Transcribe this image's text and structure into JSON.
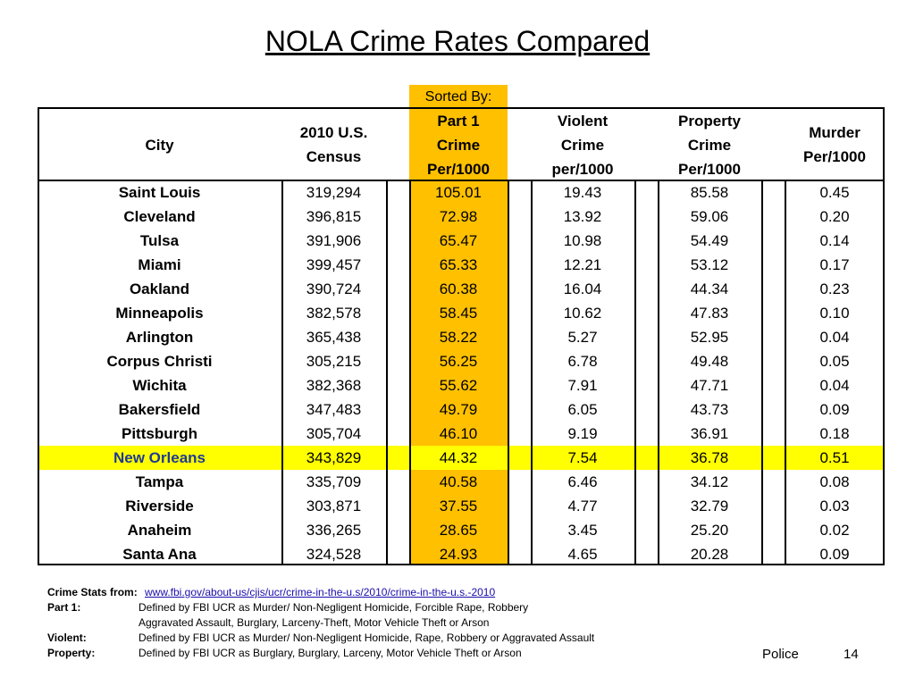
{
  "title": "NOLA Crime Rates Compared",
  "sorted_by": "Sorted By:",
  "table": {
    "headers": [
      [
        "City"
      ],
      [
        "2010 U.S.",
        "Census"
      ],
      [
        "Part 1",
        "Crime",
        "Per/1000"
      ],
      [
        "Violent",
        "Crime",
        "per/1000"
      ],
      [
        "Property",
        "Crime",
        "Per/1000"
      ],
      [
        "Murder",
        "Per/1000"
      ]
    ],
    "rows": [
      [
        "Saint Louis",
        "319,294",
        "105.01",
        "19.43",
        "85.58",
        "0.45"
      ],
      [
        "Cleveland",
        "396,815",
        "72.98",
        "13.92",
        "59.06",
        "0.20"
      ],
      [
        "Tulsa",
        "391,906",
        "65.47",
        "10.98",
        "54.49",
        "0.14"
      ],
      [
        "Miami",
        "399,457",
        "65.33",
        "12.21",
        "53.12",
        "0.17"
      ],
      [
        "Oakland",
        "390,724",
        "60.38",
        "16.04",
        "44.34",
        "0.23"
      ],
      [
        "Minneapolis",
        "382,578",
        "58.45",
        "10.62",
        "47.83",
        "0.10"
      ],
      [
        "Arlington",
        "365,438",
        "58.22",
        "5.27",
        "52.95",
        "0.04"
      ],
      [
        "Corpus Christi",
        "305,215",
        "56.25",
        "6.78",
        "49.48",
        "0.05"
      ],
      [
        "Wichita",
        "382,368",
        "55.62",
        "7.91",
        "47.71",
        "0.04"
      ],
      [
        "Bakersfield",
        "347,483",
        "49.79",
        "6.05",
        "43.73",
        "0.09"
      ],
      [
        "Pittsburgh",
        "305,704",
        "46.10",
        "9.19",
        "36.91",
        "0.18"
      ],
      [
        "New Orleans",
        "343,829",
        "44.32",
        "7.54",
        "36.78",
        "0.51"
      ],
      [
        "Tampa",
        "335,709",
        "40.58",
        "6.46",
        "34.12",
        "0.08"
      ],
      [
        "Riverside",
        "303,871",
        "37.55",
        "4.77",
        "32.79",
        "0.03"
      ],
      [
        "Anaheim",
        "336,265",
        "28.65",
        "3.45",
        "25.20",
        "0.02"
      ],
      [
        "Santa Ana",
        "324,528",
        "24.93",
        "4.65",
        "20.28",
        "0.09"
      ]
    ],
    "highlight_row": 11
  },
  "notes": [
    {
      "label": "Crime Stats from:",
      "lines": [
        "www.fbi.gov/about-us/cjis/ucr/crime-in-the-u.s/2010/crime-in-the-u.s.-2010"
      ]
    },
    {
      "label": "Part 1:",
      "lines": [
        "Defined by FBI UCR as Murder/ Non-Negligent Homicide, Forcible Rape, Robbery",
        "Aggravated Assault, Burglary, Larceny-Theft, Motor Vehicle Theft or Arson"
      ]
    },
    {
      "label": "Violent:",
      "lines": [
        "Defined by FBI UCR as Murder/ Non-Negligent Homicide, Rape, Robbery or Aggravated Assault"
      ]
    },
    {
      "label": "Property:",
      "lines": [
        "Defined by FBI UCR as Burglary, Burglary, Larceny, Motor Vehicle Theft or Arson"
      ]
    }
  ],
  "footer": {
    "section": "Police",
    "page": "14"
  }
}
